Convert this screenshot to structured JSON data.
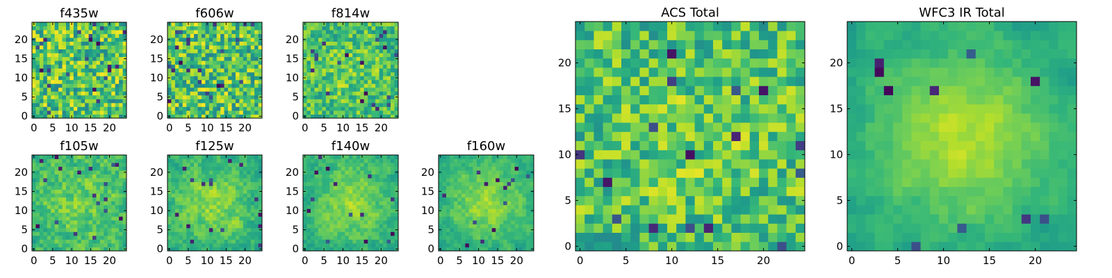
{
  "figure": {
    "description_free": true
  },
  "chart_data": [
    {
      "type": "heatmap",
      "title": "f435w",
      "xlim": [
        0,
        24
      ],
      "ylim": [
        0,
        24
      ],
      "xticks": [
        0,
        5,
        10,
        15,
        20
      ],
      "yticks": [
        0,
        5,
        10,
        15,
        20
      ],
      "xtick_labels": [
        "0",
        "5",
        "10",
        "15",
        "20"
      ],
      "ytick_labels": [
        "0",
        "5",
        "10",
        "15",
        "20"
      ],
      "grid_size": 25,
      "colormap": "viridis",
      "value_range": [
        0,
        1
      ],
      "seed": 11,
      "smooth": 0.0,
      "peak": 0.0,
      "dark_spots": 22
    },
    {
      "type": "heatmap",
      "title": "f606w",
      "xlim": [
        0,
        24
      ],
      "ylim": [
        0,
        24
      ],
      "xticks": [
        0,
        5,
        10,
        15,
        20
      ],
      "yticks": [
        0,
        5,
        10,
        15,
        20
      ],
      "xtick_labels": [
        "0",
        "5",
        "10",
        "15",
        "20"
      ],
      "ytick_labels": [
        "0",
        "5",
        "10",
        "15",
        "20"
      ],
      "grid_size": 25,
      "colormap": "viridis",
      "value_range": [
        0,
        1
      ],
      "seed": 23,
      "smooth": 0.0,
      "peak": 0.0,
      "dark_spots": 22
    },
    {
      "type": "heatmap",
      "title": "f814w",
      "xlim": [
        0,
        24
      ],
      "ylim": [
        0,
        24
      ],
      "xticks": [
        0,
        5,
        10,
        15,
        20
      ],
      "yticks": [
        0,
        5,
        10,
        15,
        20
      ],
      "xtick_labels": [
        "0",
        "5",
        "10",
        "15",
        "20"
      ],
      "ytick_labels": [
        "0",
        "5",
        "10",
        "15",
        "20"
      ],
      "grid_size": 25,
      "colormap": "viridis",
      "value_range": [
        0,
        1
      ],
      "seed": 37,
      "smooth": 0.2,
      "peak": 0.15,
      "dark_spots": 20
    },
    {
      "type": "heatmap",
      "title": "f105w",
      "xlim": [
        0,
        24
      ],
      "ylim": [
        0,
        24
      ],
      "xticks": [
        0,
        5,
        10,
        15,
        20
      ],
      "yticks": [
        0,
        5,
        10,
        15,
        20
      ],
      "xtick_labels": [
        "0",
        "5",
        "10",
        "15",
        "20"
      ],
      "ytick_labels": [
        "0",
        "5",
        "10",
        "15",
        "20"
      ],
      "grid_size": 25,
      "colormap": "viridis",
      "value_range": [
        0,
        1
      ],
      "seed": 41,
      "smooth": 0.5,
      "peak": 0.25,
      "dark_spots": 18
    },
    {
      "type": "heatmap",
      "title": "f125w",
      "xlim": [
        0,
        24
      ],
      "ylim": [
        0,
        24
      ],
      "xticks": [
        0,
        5,
        10,
        15,
        20
      ],
      "yticks": [
        0,
        5,
        10,
        15,
        20
      ],
      "xtick_labels": [
        "0",
        "5",
        "10",
        "15",
        "20"
      ],
      "ytick_labels": [
        "0",
        "5",
        "10",
        "15",
        "20"
      ],
      "grid_size": 25,
      "colormap": "viridis",
      "value_range": [
        0,
        1
      ],
      "seed": 53,
      "smooth": 0.55,
      "peak": 0.35,
      "dark_spots": 16
    },
    {
      "type": "heatmap",
      "title": "f140w",
      "xlim": [
        0,
        24
      ],
      "ylim": [
        0,
        24
      ],
      "xticks": [
        0,
        5,
        10,
        15,
        20
      ],
      "yticks": [
        0,
        5,
        10,
        15,
        20
      ],
      "xtick_labels": [
        "0",
        "5",
        "10",
        "15",
        "20"
      ],
      "ytick_labels": [
        "0",
        "5",
        "10",
        "15",
        "20"
      ],
      "grid_size": 25,
      "colormap": "viridis",
      "value_range": [
        0,
        1
      ],
      "seed": 67,
      "smooth": 0.6,
      "peak": 0.4,
      "dark_spots": 14
    },
    {
      "type": "heatmap",
      "title": "f160w",
      "xlim": [
        0,
        24
      ],
      "ylim": [
        0,
        24
      ],
      "xticks": [
        0,
        5,
        10,
        15,
        20
      ],
      "yticks": [
        0,
        5,
        10,
        15,
        20
      ],
      "xtick_labels": [
        "0",
        "5",
        "10",
        "15",
        "20"
      ],
      "ytick_labels": [
        "0",
        "5",
        "10",
        "15",
        "20"
      ],
      "grid_size": 25,
      "colormap": "viridis",
      "value_range": [
        0,
        1
      ],
      "seed": 79,
      "smooth": 0.6,
      "peak": 0.45,
      "dark_spots": 14
    },
    {
      "type": "heatmap",
      "title": "ACS Total",
      "xlim": [
        0,
        24
      ],
      "ylim": [
        0,
        24
      ],
      "xticks": [
        0,
        5,
        10,
        15,
        20
      ],
      "yticks": [
        0,
        5,
        10,
        15,
        20
      ],
      "xtick_labels": [
        "0",
        "5",
        "10",
        "15",
        "20"
      ],
      "ytick_labels": [
        "0",
        "5",
        "10",
        "15",
        "20"
      ],
      "grid_size": 25,
      "colormap": "viridis",
      "value_range": [
        0,
        1
      ],
      "seed": 97,
      "smooth": 0.15,
      "peak": 0.1,
      "dark_spots": 16
    },
    {
      "type": "heatmap",
      "title": "WFC3 IR Total",
      "xlim": [
        0,
        24
      ],
      "ylim": [
        0,
        24
      ],
      "xticks": [
        0,
        5,
        10,
        15,
        20
      ],
      "yticks": [
        0,
        5,
        10,
        15,
        20
      ],
      "xtick_labels": [
        "0",
        "5",
        "10",
        "15",
        "20"
      ],
      "ytick_labels": [
        "0",
        "5",
        "10",
        "15",
        "20"
      ],
      "grid_size": 25,
      "colormap": "viridis",
      "value_range": [
        0,
        1
      ],
      "seed": 113,
      "smooth": 0.7,
      "peak": 0.55,
      "dark_spots": 10
    }
  ]
}
